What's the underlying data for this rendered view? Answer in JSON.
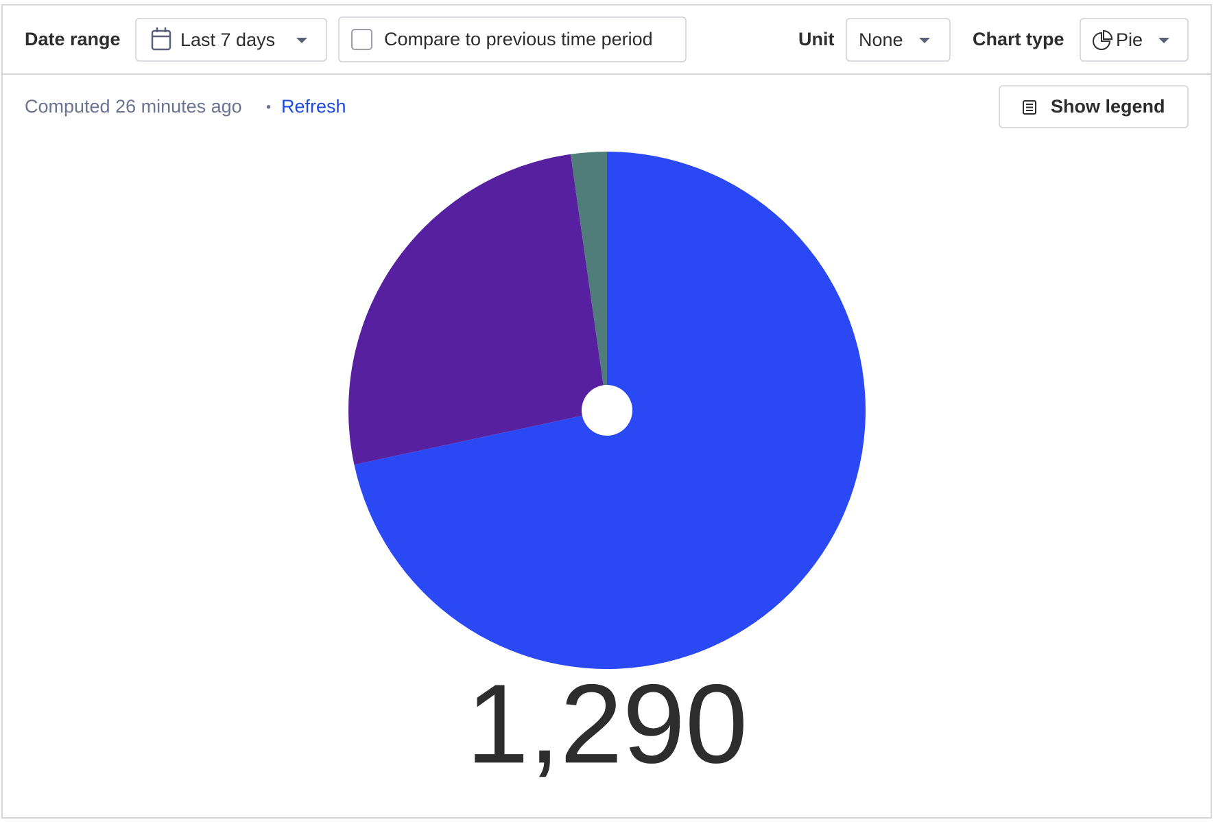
{
  "toolbar": {
    "date_range_label": "Date range",
    "date_range": "Last 7 days",
    "compare": "Compare to previous time period",
    "unit_label": "Unit",
    "unit": "None",
    "chart_type_label": "Chart type",
    "chart_type": "Pie"
  },
  "status": {
    "computed": "Computed 26 minutes ago",
    "separator": "•",
    "refresh": "Refresh"
  },
  "legend_button": "Show legend",
  "chart_data": {
    "type": "pie",
    "values": [
      924,
      337,
      29
    ],
    "colors": [
      "#2a49f5",
      "#5720a0",
      "#507d7a"
    ],
    "total": {
      "value": 1290,
      "label": "1,290"
    }
  }
}
